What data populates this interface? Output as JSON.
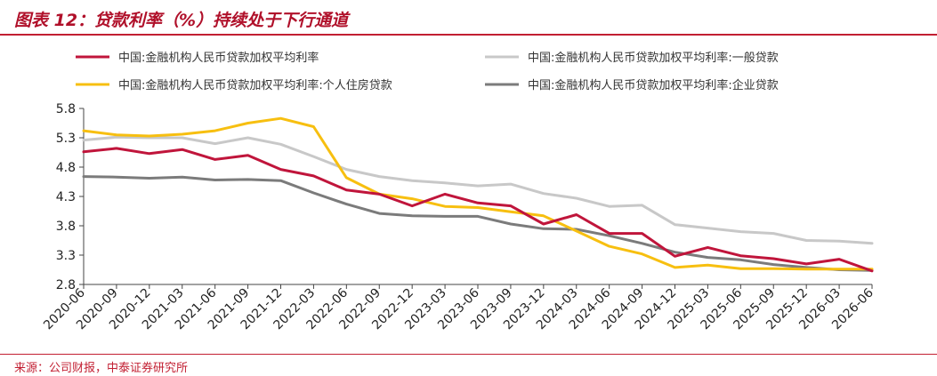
{
  "title": "图表 12：贷款利率（%）持续处于下行通道",
  "source": "来源：公司财报，中泰证券研究所",
  "colors": {
    "accent": "#c21f32",
    "series": [
      "#c0153b",
      "#c8c8c8",
      "#f7bf10",
      "#7b7b7b"
    ]
  },
  "chart_data": {
    "type": "line",
    "title": "",
    "xlabel": "",
    "ylabel": "",
    "ylim": [
      2.8,
      5.8
    ],
    "yticks": [
      "5.8",
      "5.3",
      "4.8",
      "4.3",
      "3.8",
      "3.3",
      "2.8"
    ],
    "grid": false,
    "legend_position": "top",
    "x": [
      "2020-06",
      "2020-09",
      "2020-12",
      "2021-03",
      "2021-06",
      "2021-09",
      "2021-12",
      "2022-03",
      "2022-06",
      "2022-09",
      "2022-12",
      "2023-03",
      "2023-06",
      "2023-09",
      "2023-12",
      "2024-03",
      "2024-06",
      "2024-09",
      "2024-12",
      "2025-03",
      "2025-06",
      "2025-09",
      "2025-12",
      "2026-03",
      "2026-06"
    ],
    "series": [
      {
        "name": "中国:金融机构人民币贷款加权平均利率",
        "values": [
          5.06,
          5.12,
          5.03,
          5.1,
          4.93,
          5.0,
          4.76,
          4.65,
          4.41,
          4.34,
          4.14,
          4.34,
          4.19,
          4.14,
          3.83,
          3.99,
          3.67,
          3.67,
          3.28,
          3.43,
          3.29,
          3.24,
          3.15,
          3.23,
          3.03
        ]
      },
      {
        "name": "中国:金融机构人民币贷款加权平均利率:一般贷款",
        "values": [
          5.26,
          5.31,
          5.3,
          5.3,
          5.2,
          5.3,
          5.19,
          4.98,
          4.76,
          4.64,
          4.57,
          4.53,
          4.48,
          4.51,
          4.35,
          4.27,
          4.13,
          4.15,
          3.82,
          3.76,
          3.7,
          3.67,
          3.55,
          3.54,
          3.5
        ]
      },
      {
        "name": "中国:金融机构人民币贷款加权平均利率:个人住房贷款",
        "values": [
          5.42,
          5.35,
          5.33,
          5.36,
          5.42,
          5.55,
          5.63,
          5.49,
          4.62,
          4.34,
          4.26,
          4.13,
          4.11,
          4.04,
          3.97,
          3.71,
          3.45,
          3.32,
          3.09,
          3.13,
          3.07,
          3.07,
          3.06,
          3.06,
          3.06
        ]
      },
      {
        "name": "中国:金融机构人民币贷款加权平均利率:企业贷款",
        "values": [
          4.64,
          4.63,
          4.61,
          4.63,
          4.58,
          4.59,
          4.57,
          4.36,
          4.17,
          4.01,
          3.97,
          3.96,
          3.96,
          3.83,
          3.75,
          3.74,
          3.63,
          3.5,
          3.35,
          3.26,
          3.22,
          3.14,
          3.09,
          3.05,
          3.04
        ]
      }
    ]
  }
}
